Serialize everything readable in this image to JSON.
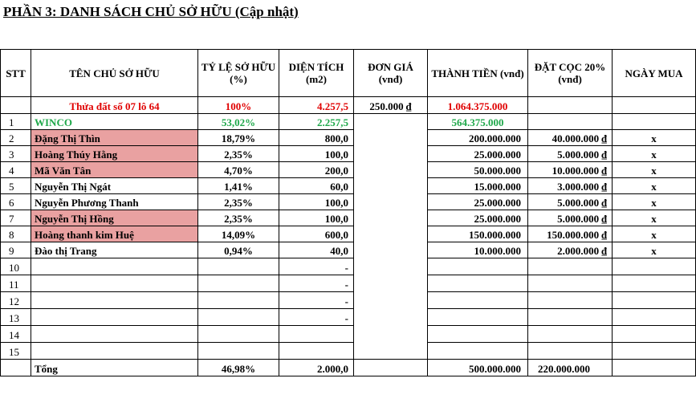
{
  "title": "PHẦN 3: DANH SÁCH CHỦ SỞ HỮU (Cập nhật)",
  "headers": {
    "stt": "STT",
    "owner": "TÊN CHỦ SỞ HỮU",
    "ratio": "TỶ LỆ SỞ HỮU (%)",
    "area": "DIỆN TÍCH (m2)",
    "unit_price": "ĐƠN GIÁ (vnđ)",
    "amount": "THÀNH TIỀN (vnđ)",
    "deposit": "ĐẶT CỌC 20% (vnđ)",
    "buy_date": "NGÀY MUA"
  },
  "summary_row": {
    "name": "Thửa đất số 07 lô 64",
    "ratio": "100%",
    "area": "4.257,5",
    "unit_price": "250.000 ₫",
    "amount": "1.064.375.000"
  },
  "rows": [
    {
      "stt": "1",
      "name": "WINCO",
      "ratio": "53,02%",
      "area": "2.257,5",
      "amount": "564.375.000",
      "deposit": "",
      "mark": ""
    },
    {
      "stt": "2",
      "name": "Đặng Thị Thìn",
      "ratio": "18,79%",
      "area": "800,0",
      "amount": "200.000.000",
      "deposit": "40.000.000 ₫",
      "mark": "x"
    },
    {
      "stt": "3",
      "name": "Hoàng Thúy Hằng",
      "ratio": "2,35%",
      "area": "100,0",
      "amount": "25.000.000",
      "deposit": "5.000.000 ₫",
      "mark": "x"
    },
    {
      "stt": "4",
      "name": "Mã Văn Tân",
      "ratio": "4,70%",
      "area": "200,0",
      "amount": "50.000.000",
      "deposit": "10.000.000 ₫",
      "mark": "x"
    },
    {
      "stt": "5",
      "name": "Nguyễn Thị Ngát",
      "ratio": "1,41%",
      "area": "60,0",
      "amount": "15.000.000",
      "deposit": "3.000.000 ₫",
      "mark": "x"
    },
    {
      "stt": "6",
      "name": "Nguyễn Phương Thanh",
      "ratio": "2,35%",
      "area": "100,0",
      "amount": "25.000.000",
      "deposit": "5.000.000 ₫",
      "mark": "x"
    },
    {
      "stt": "7",
      "name": "Nguyễn Thị Hồng",
      "ratio": "2,35%",
      "area": "100,0",
      "amount": "25.000.000",
      "deposit": "5.000.000 ₫",
      "mark": "x"
    },
    {
      "stt": "8",
      "name": "Hoàng thanh kim Huệ",
      "ratio": "14,09%",
      "area": "600,0",
      "amount": "150.000.000",
      "deposit": "150.000.000 ₫",
      "mark": "x"
    },
    {
      "stt": "9",
      "name": "Đào thị Trang",
      "ratio": "0,94%",
      "area": "40,0",
      "amount": "10.000.000",
      "deposit": "2.000.000 ₫",
      "mark": "x"
    },
    {
      "stt": "10",
      "name": "",
      "ratio": "",
      "area": "-",
      "amount": "",
      "deposit": "",
      "mark": ""
    },
    {
      "stt": "11",
      "name": "",
      "ratio": "",
      "area": "-",
      "amount": "",
      "deposit": "",
      "mark": ""
    },
    {
      "stt": "12",
      "name": "",
      "ratio": "",
      "area": "-",
      "amount": "",
      "deposit": "",
      "mark": ""
    },
    {
      "stt": "13",
      "name": "",
      "ratio": "",
      "area": "-",
      "amount": "",
      "deposit": "",
      "mark": ""
    },
    {
      "stt": "14",
      "name": "",
      "ratio": "",
      "area": "",
      "amount": "",
      "deposit": "",
      "mark": ""
    },
    {
      "stt": "15",
      "name": "",
      "ratio": "",
      "area": "",
      "amount": "",
      "deposit": "",
      "mark": ""
    }
  ],
  "total_row": {
    "label": "Tổng",
    "ratio": "46,98%",
    "area": "2.000,0",
    "amount": "500.000.000",
    "deposit": "220.000.000"
  },
  "colors": {
    "summary_text": "#e00000",
    "winco_text": "#1fa84a",
    "highlight_fill": "#e9a1a1"
  }
}
